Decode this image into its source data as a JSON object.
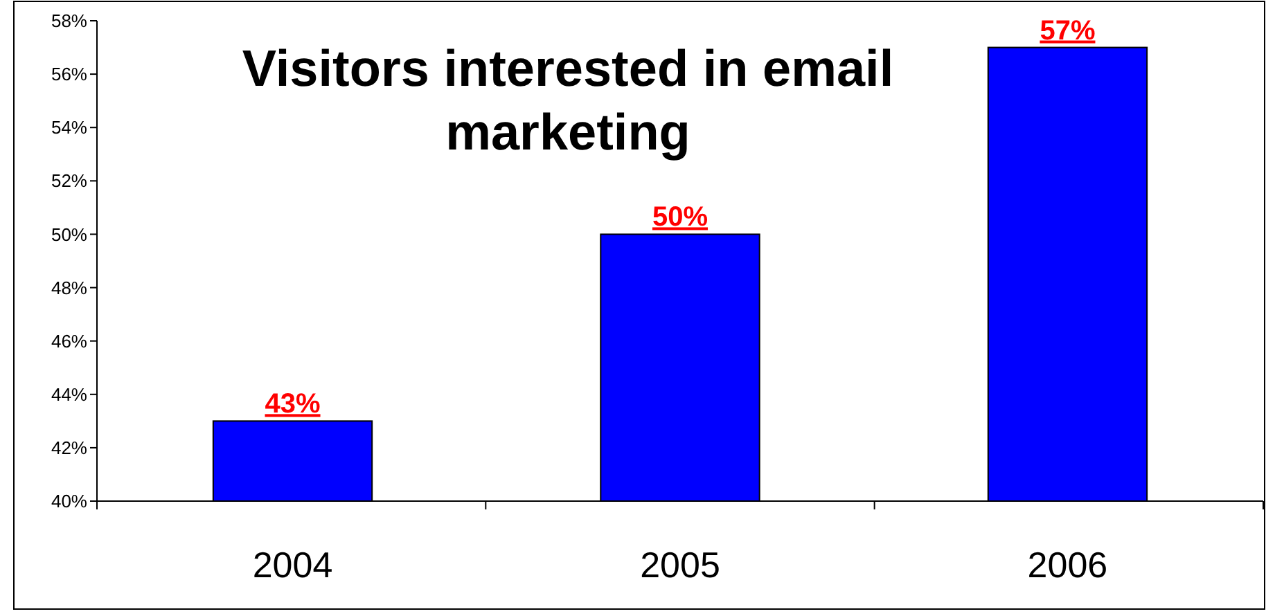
{
  "chart_data": {
    "type": "bar",
    "title": "Visitors interested in email marketing",
    "categories": [
      "2004",
      "2005",
      "2006"
    ],
    "values": [
      43,
      50,
      57
    ],
    "color": "#0000ff",
    "value_labels": [
      "43%",
      "50%",
      "57%"
    ],
    "ylim": [
      40,
      58
    ],
    "yticks": [
      {
        "value": 40,
        "label": "40%"
      },
      {
        "value": 42,
        "label": "42%"
      },
      {
        "value": 44,
        "label": "44%"
      },
      {
        "value": 46,
        "label": "46%"
      },
      {
        "value": 48,
        "label": "48%"
      },
      {
        "value": 50,
        "label": "50%"
      },
      {
        "value": 52,
        "label": "52%"
      },
      {
        "value": 54,
        "label": "54%"
      },
      {
        "value": 56,
        "label": "56%"
      },
      {
        "value": 58,
        "label": "58%"
      }
    ],
    "grid": false
  }
}
